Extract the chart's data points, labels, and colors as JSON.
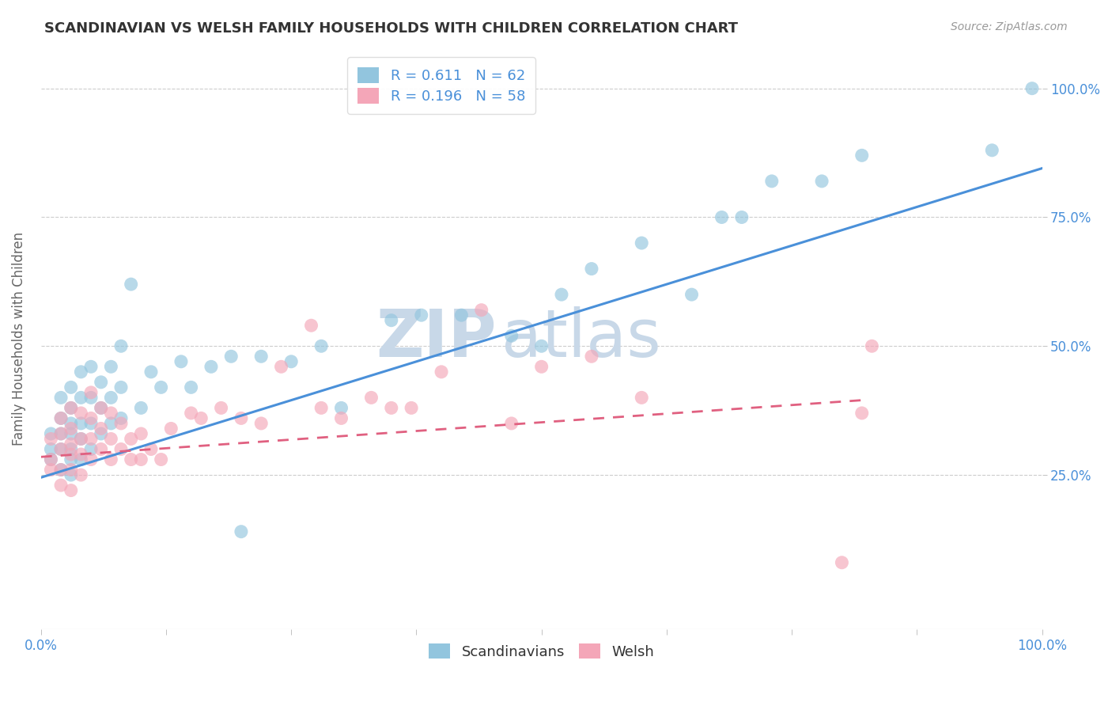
{
  "title": "SCANDINAVIAN VS WELSH FAMILY HOUSEHOLDS WITH CHILDREN CORRELATION CHART",
  "source": "Source: ZipAtlas.com",
  "xlabel": "",
  "ylabel": "Family Households with Children",
  "legend_labels": [
    "Scandinavians",
    "Welsh"
  ],
  "R_scand": 0.611,
  "N_scand": 62,
  "R_welsh": 0.196,
  "N_welsh": 58,
  "xlim": [
    0.0,
    1.0
  ],
  "ylim": [
    -0.05,
    1.08
  ],
  "x_ticks": [
    0.0,
    0.125,
    0.25,
    0.375,
    0.5,
    0.625,
    0.75,
    0.875,
    1.0
  ],
  "y_ticks": [
    0.25,
    0.5,
    0.75,
    1.0
  ],
  "y_tick_labels": [
    "25.0%",
    "50.0%",
    "75.0%",
    "100.0%"
  ],
  "scand_color": "#92c5de",
  "welsh_color": "#f4a6b8",
  "scand_line_color": "#4a90d9",
  "welsh_line_color": "#e06080",
  "grid_color": "#cccccc",
  "watermark_color_zip": "#c8d8e8",
  "watermark_color_atlas": "#c8d8e8",
  "background_color": "#ffffff",
  "tick_label_color": "#4a90d9",
  "scand_points_x": [
    0.01,
    0.01,
    0.01,
    0.02,
    0.02,
    0.02,
    0.02,
    0.02,
    0.03,
    0.03,
    0.03,
    0.03,
    0.03,
    0.03,
    0.03,
    0.04,
    0.04,
    0.04,
    0.04,
    0.04,
    0.05,
    0.05,
    0.05,
    0.05,
    0.06,
    0.06,
    0.06,
    0.07,
    0.07,
    0.07,
    0.08,
    0.08,
    0.08,
    0.09,
    0.1,
    0.11,
    0.12,
    0.14,
    0.15,
    0.17,
    0.19,
    0.2,
    0.22,
    0.25,
    0.28,
    0.3,
    0.35,
    0.38,
    0.42,
    0.47,
    0.5,
    0.52,
    0.55,
    0.6,
    0.65,
    0.68,
    0.7,
    0.73,
    0.78,
    0.82,
    0.95,
    0.99
  ],
  "scand_points_y": [
    0.28,
    0.3,
    0.33,
    0.26,
    0.3,
    0.33,
    0.36,
    0.4,
    0.25,
    0.28,
    0.3,
    0.33,
    0.35,
    0.38,
    0.42,
    0.28,
    0.32,
    0.35,
    0.4,
    0.45,
    0.3,
    0.35,
    0.4,
    0.46,
    0.33,
    0.38,
    0.43,
    0.35,
    0.4,
    0.46,
    0.36,
    0.42,
    0.5,
    0.62,
    0.38,
    0.45,
    0.42,
    0.47,
    0.42,
    0.46,
    0.48,
    0.14,
    0.48,
    0.47,
    0.5,
    0.38,
    0.55,
    0.56,
    0.56,
    0.52,
    0.5,
    0.6,
    0.65,
    0.7,
    0.6,
    0.75,
    0.75,
    0.82,
    0.82,
    0.87,
    0.88,
    1.0
  ],
  "welsh_points_x": [
    0.01,
    0.01,
    0.01,
    0.02,
    0.02,
    0.02,
    0.02,
    0.02,
    0.03,
    0.03,
    0.03,
    0.03,
    0.03,
    0.03,
    0.04,
    0.04,
    0.04,
    0.04,
    0.05,
    0.05,
    0.05,
    0.05,
    0.06,
    0.06,
    0.06,
    0.07,
    0.07,
    0.07,
    0.08,
    0.08,
    0.09,
    0.09,
    0.1,
    0.1,
    0.11,
    0.12,
    0.13,
    0.15,
    0.16,
    0.18,
    0.2,
    0.22,
    0.24,
    0.27,
    0.28,
    0.3,
    0.33,
    0.35,
    0.37,
    0.4,
    0.44,
    0.47,
    0.5,
    0.55,
    0.6,
    0.8,
    0.82,
    0.83
  ],
  "welsh_points_y": [
    0.26,
    0.28,
    0.32,
    0.23,
    0.26,
    0.3,
    0.33,
    0.36,
    0.22,
    0.26,
    0.29,
    0.31,
    0.34,
    0.38,
    0.25,
    0.29,
    0.32,
    0.37,
    0.28,
    0.32,
    0.36,
    0.41,
    0.3,
    0.34,
    0.38,
    0.28,
    0.32,
    0.37,
    0.3,
    0.35,
    0.28,
    0.32,
    0.28,
    0.33,
    0.3,
    0.28,
    0.34,
    0.37,
    0.36,
    0.38,
    0.36,
    0.35,
    0.46,
    0.54,
    0.38,
    0.36,
    0.4,
    0.38,
    0.38,
    0.45,
    0.57,
    0.35,
    0.46,
    0.48,
    0.4,
    0.08,
    0.37,
    0.5
  ],
  "scand_line_x0": 0.0,
  "scand_line_y0": 0.245,
  "scand_line_x1": 1.0,
  "scand_line_y1": 0.845,
  "welsh_line_x0": 0.0,
  "welsh_line_y0": 0.285,
  "welsh_line_x1": 0.82,
  "welsh_line_y1": 0.395
}
